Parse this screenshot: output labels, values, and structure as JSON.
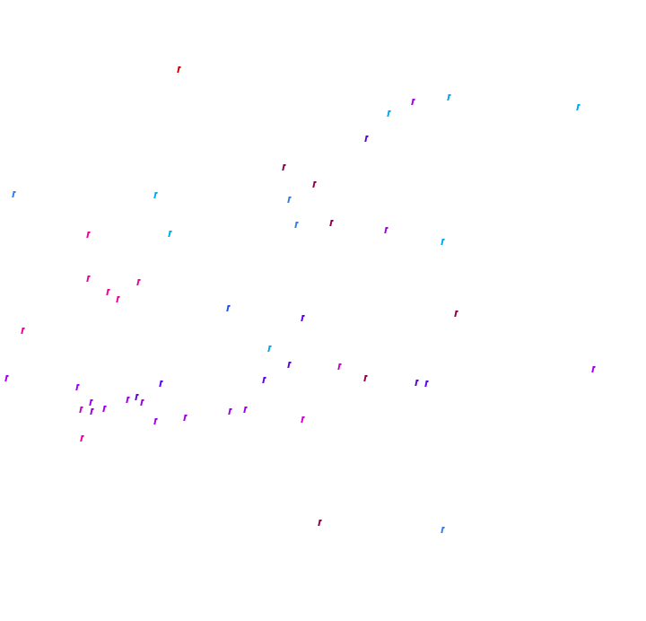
{
  "palette": {
    "red": "#d00000",
    "maroon": "#900050",
    "pink": "#f000a0",
    "magenta": "#d000d0",
    "purple": "#a000f0",
    "violet": "#6000f0",
    "blue": "#2050f0",
    "sky": "#3080f0",
    "cyan": "#00aaf0"
  }
}
